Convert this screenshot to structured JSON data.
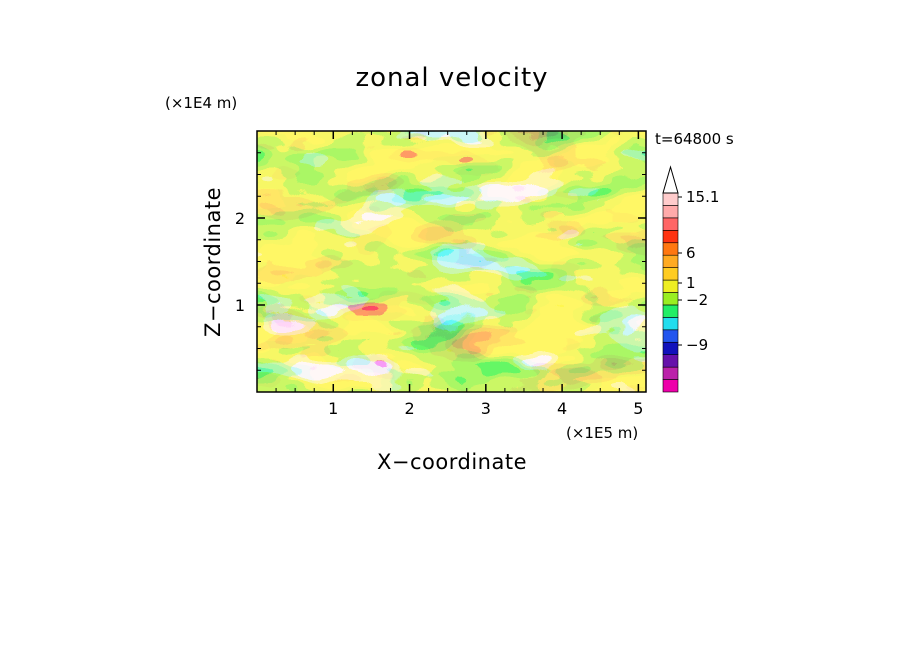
{
  "chart_data": {
    "type": "heatmap",
    "title": "zonal velocity",
    "xlabel": "X−coordinate",
    "ylabel": "Z−coordinate",
    "x_unit": "(×1E5 m)",
    "y_unit": "(×1E4 m)",
    "time_label": "t=64800 s",
    "xlim": [
      0,
      5.1
    ],
    "ylim": [
      0,
      3.0
    ],
    "x_ticks": [
      1,
      2,
      3,
      4,
      5
    ],
    "y_ticks": [
      1,
      2
    ],
    "x_tick_labels": [
      "1",
      "2",
      "3",
      "4",
      "5"
    ],
    "y_tick_labels": [
      "1",
      "2"
    ],
    "colorbar": {
      "labels": [
        {
          "value": 15.1,
          "text": "15.1"
        },
        {
          "value": 6,
          "text": "6"
        },
        {
          "value": 1,
          "text": "1"
        },
        {
          "value": -2,
          "text": "−2"
        },
        {
          "value": -9,
          "text": "−9"
        }
      ],
      "colors": [
        "#ee00aa",
        "#bb22aa",
        "#6611aa",
        "#1111bb",
        "#2255ee",
        "#22ddee",
        "#22ee66",
        "#99ee22",
        "#eeee22",
        "#ffcc22",
        "#ffaa22",
        "#ff7711",
        "#ff3311",
        "#ff6666",
        "#ffaaaa",
        "#ffcccc"
      ],
      "extend_max": true
    },
    "grid": false
  }
}
